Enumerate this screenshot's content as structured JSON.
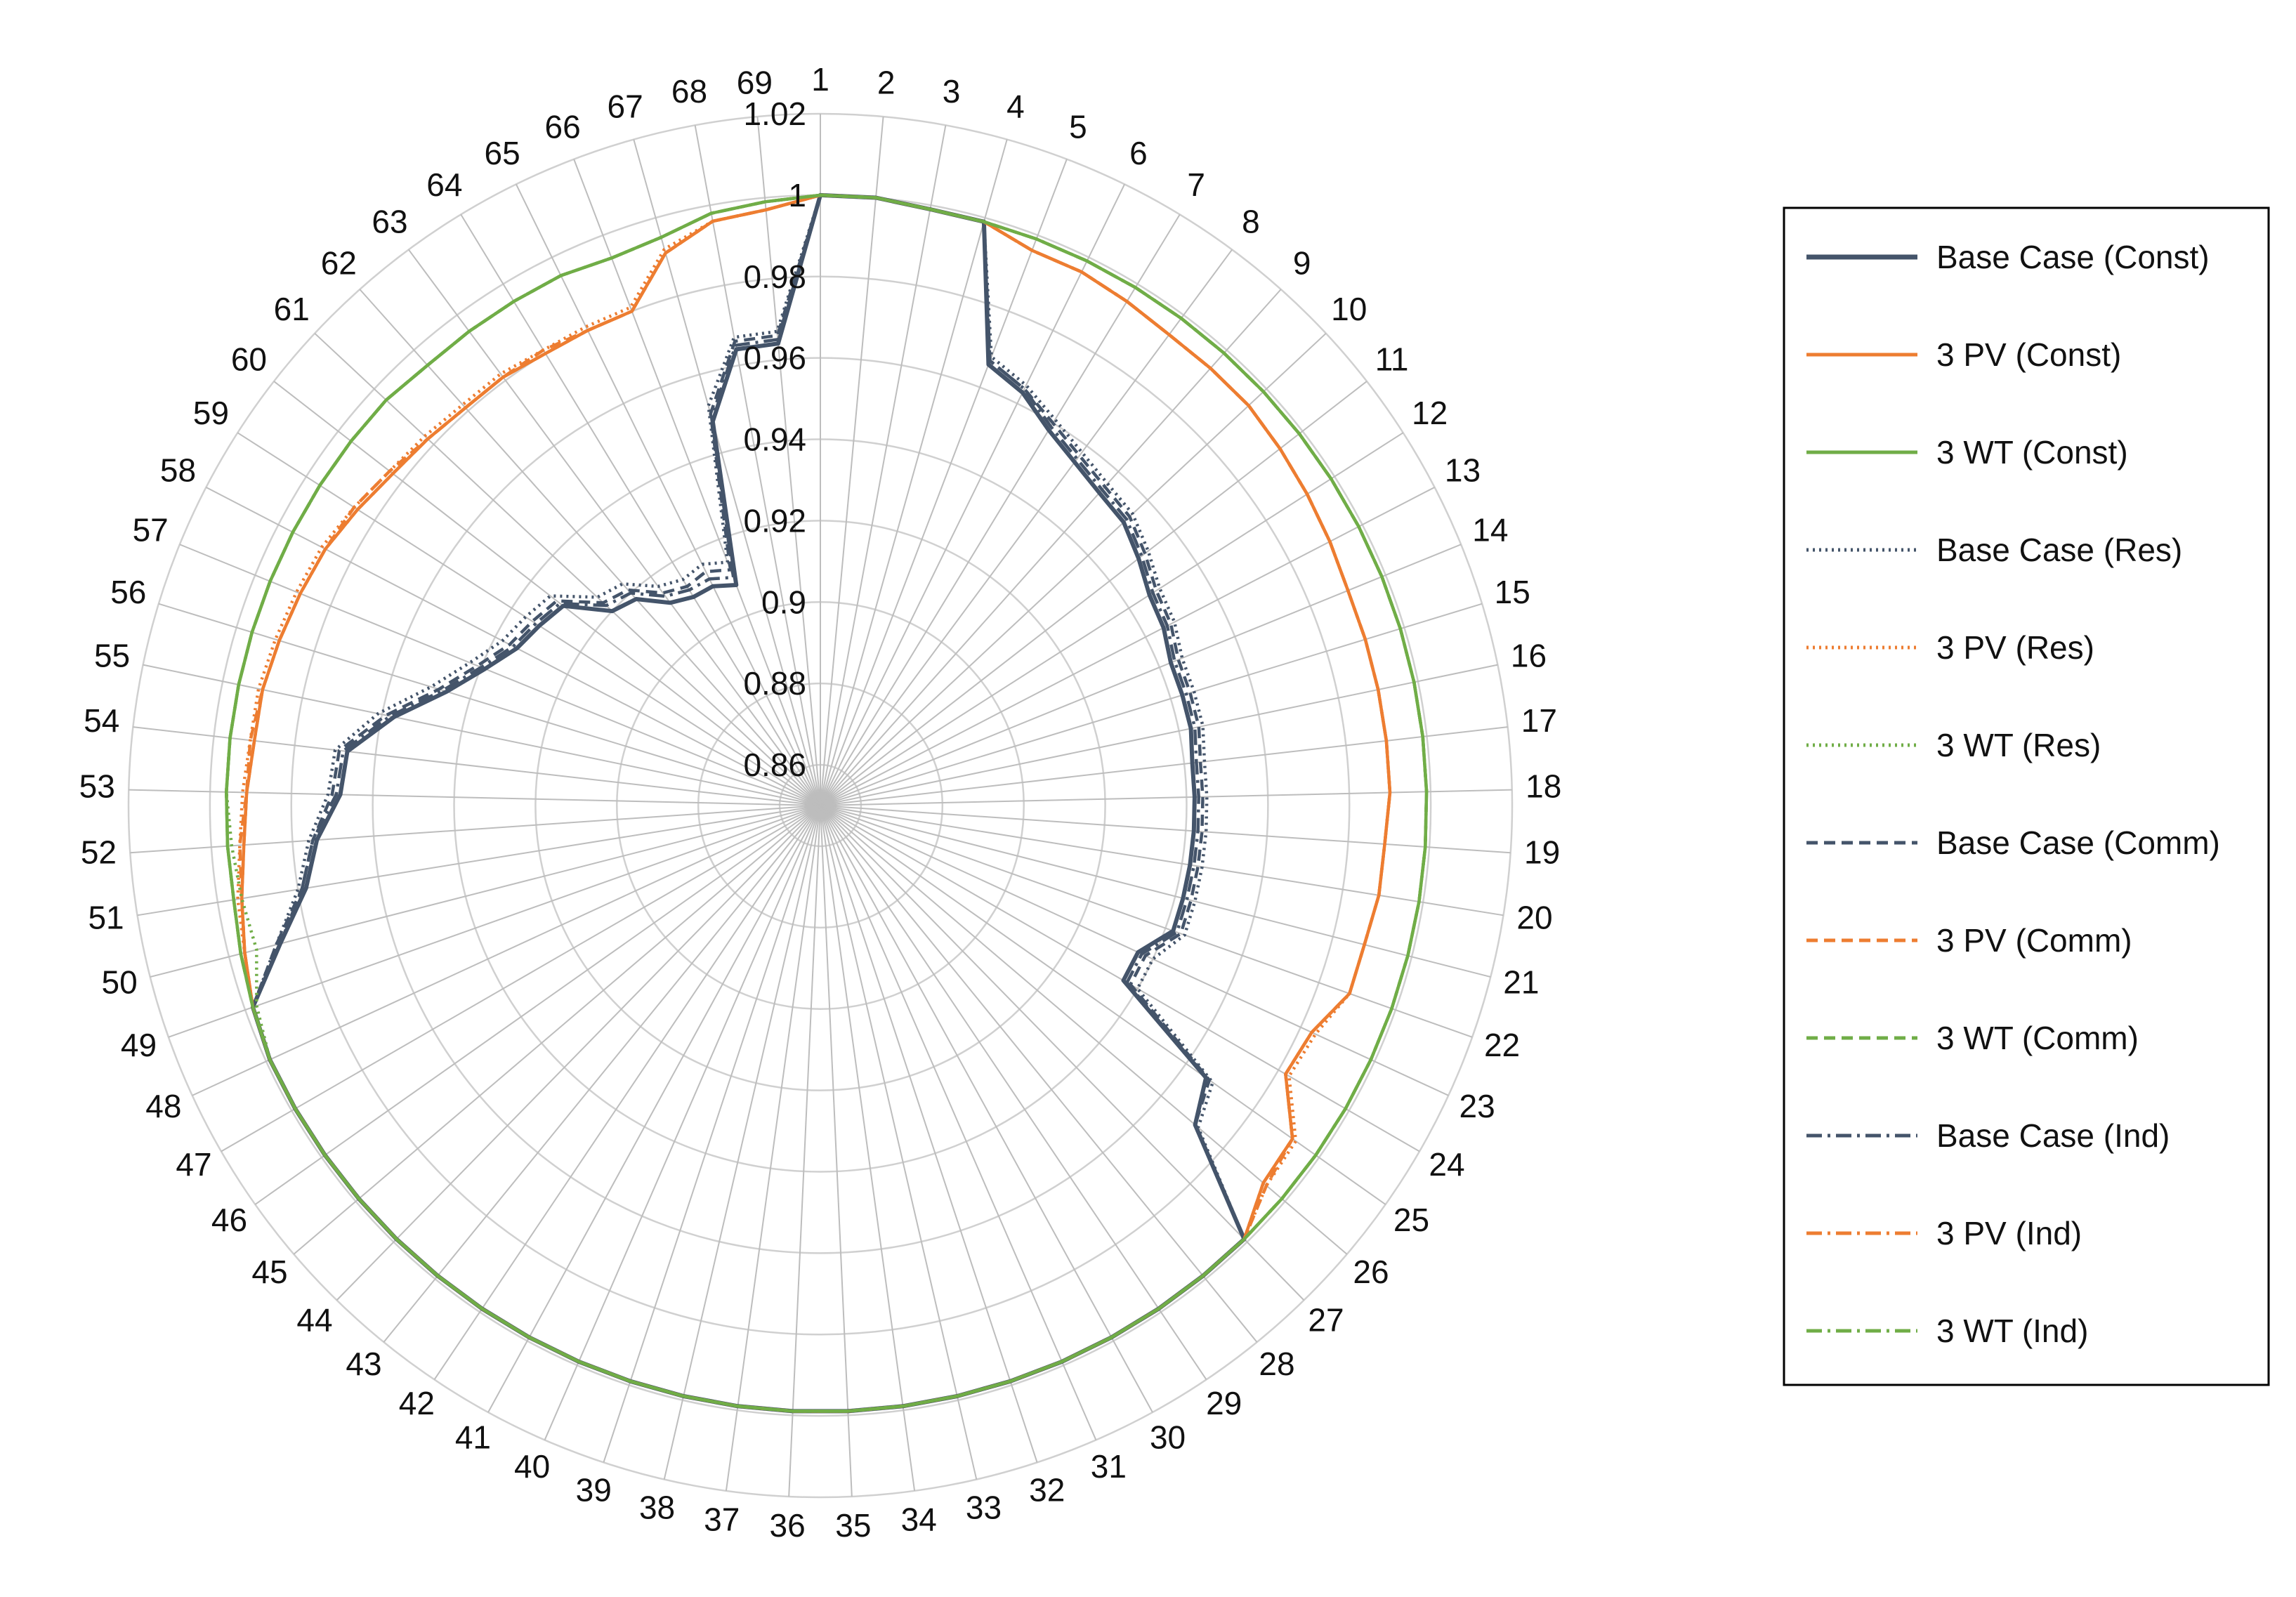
{
  "chart_data": {
    "type": "radar",
    "title": "",
    "categories": [
      "1",
      "2",
      "3",
      "4",
      "5",
      "6",
      "7",
      "8",
      "9",
      "10",
      "11",
      "12",
      "13",
      "14",
      "15",
      "16",
      "17",
      "18",
      "19",
      "20",
      "21",
      "22",
      "23",
      "24",
      "25",
      "26",
      "27",
      "28",
      "29",
      "30",
      "31",
      "32",
      "33",
      "34",
      "35",
      "36",
      "37",
      "38",
      "39",
      "40",
      "41",
      "42",
      "43",
      "44",
      "45",
      "46",
      "47",
      "48",
      "49",
      "50",
      "51",
      "52",
      "53",
      "54",
      "55",
      "56",
      "57",
      "58",
      "59",
      "60",
      "61",
      "62",
      "63",
      "64",
      "65",
      "66",
      "67",
      "68",
      "69"
    ],
    "rlim": [
      0.85,
      1.02
    ],
    "ticks": [
      {
        "value": 0.86,
        "label": "0.86"
      },
      {
        "value": 0.88,
        "label": "0.88"
      },
      {
        "value": 0.9,
        "label": "0.9"
      },
      {
        "value": 0.92,
        "label": "0.92"
      },
      {
        "value": 0.94,
        "label": "0.94"
      },
      {
        "value": 0.96,
        "label": "0.96"
      },
      {
        "value": 0.98,
        "label": "0.98"
      },
      {
        "value": 1.0,
        "label": "1"
      },
      {
        "value": 1.02,
        "label": "1.02"
      }
    ],
    "legend_position": "right",
    "series": [
      {
        "name": "Base Case (Const)",
        "color": "#44546A",
        "dash": "solid",
        "values": [
          1.0,
          1.0,
          0.999,
          0.999,
          0.966,
          0.963,
          0.958,
          0.955,
          0.953,
          0.952,
          0.949,
          0.946,
          0.945,
          0.943,
          0.943,
          0.943,
          0.942,
          0.942,
          0.942,
          0.942,
          0.942,
          0.942,
          0.936,
          0.936,
          0.966,
          0.971,
          0.999,
          0.999,
          0.999,
          0.999,
          0.999,
          0.999,
          0.999,
          0.999,
          0.999,
          0.999,
          0.999,
          0.999,
          0.999,
          0.999,
          0.999,
          0.999,
          0.999,
          0.999,
          0.999,
          0.999,
          0.999,
          0.999,
          0.998,
          0.987,
          0.978,
          0.974,
          0.968,
          0.967,
          0.957,
          0.946,
          0.939,
          0.934,
          0.932,
          0.93,
          0.92,
          0.918,
          0.912,
          0.91,
          0.91,
          0.908,
          0.948,
          0.964,
          0.964
        ]
      },
      {
        "name": "3 PV (Const)",
        "color": "#ED7D31",
        "dash": "solid",
        "values": [
          1.0,
          1.0,
          0.999,
          0.999,
          0.996,
          0.996,
          0.995,
          0.994,
          0.994,
          0.994,
          0.993,
          0.992,
          0.991,
          0.99,
          0.99,
          0.99,
          0.99,
          0.99,
          0.989,
          0.989,
          0.988,
          0.988,
          0.983,
          0.982,
          0.992,
          0.993,
          0.999,
          0.999,
          0.999,
          0.999,
          0.999,
          0.999,
          0.999,
          0.999,
          0.999,
          0.999,
          0.999,
          0.999,
          0.999,
          0.999,
          0.999,
          0.999,
          0.999,
          0.999,
          0.999,
          0.999,
          0.999,
          0.999,
          0.998,
          0.996,
          0.994,
          0.992,
          0.991,
          0.99,
          0.99,
          0.989,
          0.988,
          0.987,
          0.985,
          0.983,
          0.982,
          0.981,
          0.981,
          0.98,
          0.98,
          0.98,
          0.991,
          0.996,
          0.997
        ]
      },
      {
        "name": "3 WT (Const)",
        "color": "#70AD47",
        "dash": "solid",
        "values": [
          1.0,
          1.0,
          0.999,
          0.999,
          0.999,
          0.999,
          0.999,
          0.999,
          0.999,
          0.999,
          0.999,
          0.999,
          0.999,
          0.999,
          0.999,
          0.999,
          0.999,
          0.999,
          0.999,
          0.999,
          0.999,
          0.999,
          0.999,
          0.999,
          0.999,
          0.999,
          0.999,
          0.999,
          0.999,
          0.999,
          0.999,
          0.999,
          0.999,
          0.999,
          0.999,
          0.999,
          0.999,
          0.999,
          0.999,
          0.999,
          0.999,
          0.999,
          0.999,
          0.999,
          0.999,
          0.999,
          0.999,
          0.999,
          0.998,
          0.997,
          0.996,
          0.996,
          0.996,
          0.996,
          0.996,
          0.996,
          0.996,
          0.996,
          0.996,
          0.996,
          0.996,
          0.995,
          0.995,
          0.995,
          0.995,
          0.994,
          0.995,
          0.998,
          0.999
        ]
      },
      {
        "name": "Base Case (Res)",
        "color": "#44546A",
        "dash": "dot",
        "values": [
          1.0,
          1.0,
          0.999,
          0.999,
          0.968,
          0.965,
          0.961,
          0.958,
          0.956,
          0.955,
          0.952,
          0.949,
          0.948,
          0.946,
          0.946,
          0.946,
          0.945,
          0.945,
          0.945,
          0.945,
          0.945,
          0.945,
          0.94,
          0.94,
          0.968,
          0.972,
          0.999,
          0.999,
          0.999,
          0.999,
          0.999,
          0.999,
          0.999,
          0.999,
          0.999,
          0.999,
          0.999,
          0.999,
          0.999,
          0.999,
          0.999,
          0.999,
          0.999,
          0.999,
          0.999,
          0.999,
          0.999,
          0.999,
          0.998,
          0.988,
          0.98,
          0.976,
          0.971,
          0.97,
          0.961,
          0.95,
          0.943,
          0.938,
          0.936,
          0.934,
          0.925,
          0.923,
          0.917,
          0.915,
          0.916,
          0.914,
          0.952,
          0.967,
          0.967
        ]
      },
      {
        "name": "3 PV (Res)",
        "color": "#ED7D31",
        "dash": "dot",
        "values": [
          1.0,
          1.0,
          0.999,
          0.999,
          0.996,
          0.996,
          0.995,
          0.994,
          0.994,
          0.994,
          0.993,
          0.992,
          0.991,
          0.99,
          0.99,
          0.99,
          0.99,
          0.99,
          0.989,
          0.989,
          0.988,
          0.988,
          0.984,
          0.983,
          0.993,
          0.994,
          0.999,
          0.999,
          0.999,
          0.999,
          0.999,
          0.999,
          0.999,
          0.999,
          0.999,
          0.999,
          0.999,
          0.999,
          0.999,
          0.999,
          0.999,
          0.999,
          0.999,
          0.999,
          0.999,
          0.999,
          0.999,
          0.999,
          0.998,
          0.996,
          0.995,
          0.993,
          0.992,
          0.991,
          0.991,
          0.99,
          0.989,
          0.988,
          0.986,
          0.984,
          0.983,
          0.982,
          0.982,
          0.981,
          0.981,
          0.981,
          0.992,
          0.996,
          0.997
        ]
      },
      {
        "name": "3 WT (Res)",
        "color": "#70AD47",
        "dash": "dot",
        "values": [
          1.0,
          1.0,
          0.999,
          0.999,
          0.999,
          0.999,
          0.999,
          0.999,
          0.999,
          0.999,
          0.999,
          0.999,
          0.999,
          0.999,
          0.999,
          0.999,
          0.999,
          0.999,
          0.999,
          0.999,
          0.999,
          0.999,
          0.999,
          0.999,
          0.999,
          0.999,
          0.999,
          0.999,
          0.999,
          0.999,
          0.999,
          0.999,
          0.999,
          0.999,
          0.999,
          0.999,
          0.999,
          0.999,
          0.999,
          0.999,
          0.999,
          0.999,
          0.999,
          0.999,
          0.999,
          0.999,
          0.999,
          0.999,
          0.997,
          0.993,
          0.994,
          0.995,
          0.996,
          0.996,
          0.996,
          0.996,
          0.996,
          0.996,
          0.996,
          0.996,
          0.996,
          0.995,
          0.995,
          0.995,
          0.995,
          0.994,
          0.995,
          0.998,
          0.999
        ]
      },
      {
        "name": "Base Case (Comm)",
        "color": "#44546A",
        "dash": "dash",
        "values": [
          1.0,
          1.0,
          0.999,
          0.999,
          0.967,
          0.964,
          0.96,
          0.957,
          0.955,
          0.954,
          0.951,
          0.948,
          0.947,
          0.945,
          0.945,
          0.945,
          0.944,
          0.944,
          0.944,
          0.944,
          0.944,
          0.944,
          0.938,
          0.938,
          0.967,
          0.971,
          0.999,
          0.999,
          0.999,
          0.999,
          0.999,
          0.999,
          0.999,
          0.999,
          0.999,
          0.999,
          0.999,
          0.999,
          0.999,
          0.999,
          0.999,
          0.999,
          0.999,
          0.999,
          0.999,
          0.999,
          0.999,
          0.999,
          0.998,
          0.988,
          0.979,
          0.975,
          0.97,
          0.969,
          0.959,
          0.948,
          0.941,
          0.936,
          0.934,
          0.932,
          0.923,
          0.921,
          0.915,
          0.913,
          0.914,
          0.912,
          0.95,
          0.966,
          0.966
        ]
      },
      {
        "name": "3 PV (Comm)",
        "color": "#ED7D31",
        "dash": "dash",
        "values": [
          1.0,
          1.0,
          0.999,
          0.999,
          0.996,
          0.996,
          0.995,
          0.994,
          0.994,
          0.994,
          0.993,
          0.992,
          0.991,
          0.99,
          0.99,
          0.99,
          0.99,
          0.99,
          0.989,
          0.989,
          0.988,
          0.988,
          0.983,
          0.982,
          0.992,
          0.994,
          0.999,
          0.999,
          0.999,
          0.999,
          0.999,
          0.999,
          0.999,
          0.999,
          0.999,
          0.999,
          0.999,
          0.999,
          0.999,
          0.999,
          0.999,
          0.999,
          0.999,
          0.999,
          0.999,
          0.999,
          0.999,
          0.999,
          0.998,
          0.996,
          0.994,
          0.993,
          0.991,
          0.991,
          0.99,
          0.989,
          0.988,
          0.987,
          0.986,
          0.984,
          0.982,
          0.981,
          0.981,
          0.981,
          0.98,
          0.98,
          0.991,
          0.996,
          0.997
        ]
      },
      {
        "name": "3 WT (Comm)",
        "color": "#70AD47",
        "dash": "dash",
        "values": [
          1.0,
          1.0,
          0.999,
          0.999,
          0.999,
          0.999,
          0.999,
          0.999,
          0.999,
          0.999,
          0.999,
          0.999,
          0.999,
          0.999,
          0.999,
          0.999,
          0.999,
          0.999,
          0.999,
          0.999,
          0.999,
          0.999,
          0.999,
          0.999,
          0.999,
          0.999,
          0.999,
          0.999,
          0.999,
          0.999,
          0.999,
          0.999,
          0.999,
          0.999,
          0.999,
          0.999,
          0.999,
          0.999,
          0.999,
          0.999,
          0.999,
          0.999,
          0.999,
          0.999,
          0.999,
          0.999,
          0.999,
          0.999,
          0.998,
          0.997,
          0.996,
          0.996,
          0.996,
          0.996,
          0.996,
          0.996,
          0.996,
          0.996,
          0.996,
          0.996,
          0.996,
          0.995,
          0.995,
          0.995,
          0.995,
          0.994,
          0.995,
          0.998,
          0.999
        ]
      },
      {
        "name": "Base Case (Ind)",
        "color": "#44546A",
        "dash": "dashdot",
        "values": [
          1.0,
          1.0,
          0.999,
          0.999,
          0.967,
          0.964,
          0.959,
          0.956,
          0.954,
          0.953,
          0.95,
          0.947,
          0.946,
          0.944,
          0.944,
          0.944,
          0.943,
          0.943,
          0.943,
          0.943,
          0.943,
          0.943,
          0.937,
          0.937,
          0.966,
          0.971,
          0.999,
          0.999,
          0.999,
          0.999,
          0.999,
          0.999,
          0.999,
          0.999,
          0.999,
          0.999,
          0.999,
          0.999,
          0.999,
          0.999,
          0.999,
          0.999,
          0.999,
          0.999,
          0.999,
          0.999,
          0.999,
          0.999,
          0.998,
          0.987,
          0.979,
          0.975,
          0.969,
          0.968,
          0.958,
          0.947,
          0.94,
          0.935,
          0.933,
          0.931,
          0.922,
          0.92,
          0.914,
          0.912,
          0.912,
          0.91,
          0.949,
          0.965,
          0.965
        ]
      },
      {
        "name": "3 PV (Ind)",
        "color": "#ED7D31",
        "dash": "dashdot",
        "values": [
          1.0,
          1.0,
          0.999,
          0.999,
          0.996,
          0.996,
          0.995,
          0.994,
          0.994,
          0.994,
          0.993,
          0.992,
          0.991,
          0.99,
          0.99,
          0.99,
          0.99,
          0.99,
          0.989,
          0.989,
          0.988,
          0.988,
          0.983,
          0.982,
          0.992,
          0.993,
          0.999,
          0.999,
          0.999,
          0.999,
          0.999,
          0.999,
          0.999,
          0.999,
          0.999,
          0.999,
          0.999,
          0.999,
          0.999,
          0.999,
          0.999,
          0.999,
          0.999,
          0.999,
          0.999,
          0.999,
          0.999,
          0.999,
          0.998,
          0.996,
          0.994,
          0.992,
          0.991,
          0.99,
          0.99,
          0.989,
          0.988,
          0.987,
          0.985,
          0.983,
          0.982,
          0.981,
          0.981,
          0.98,
          0.98,
          0.98,
          0.991,
          0.996,
          0.997
        ]
      },
      {
        "name": "3 WT (Ind)",
        "color": "#70AD47",
        "dash": "dashdot",
        "values": [
          1.0,
          1.0,
          0.999,
          0.999,
          0.999,
          0.999,
          0.999,
          0.999,
          0.999,
          0.999,
          0.999,
          0.999,
          0.999,
          0.999,
          0.999,
          0.999,
          0.999,
          0.999,
          0.999,
          0.999,
          0.999,
          0.999,
          0.999,
          0.999,
          0.999,
          0.999,
          0.999,
          0.999,
          0.999,
          0.999,
          0.999,
          0.999,
          0.999,
          0.999,
          0.999,
          0.999,
          0.999,
          0.999,
          0.999,
          0.999,
          0.999,
          0.999,
          0.999,
          0.999,
          0.999,
          0.999,
          0.999,
          0.999,
          0.998,
          0.997,
          0.996,
          0.996,
          0.996,
          0.996,
          0.996,
          0.996,
          0.996,
          0.996,
          0.996,
          0.996,
          0.996,
          0.995,
          0.995,
          0.995,
          0.995,
          0.994,
          0.995,
          0.998,
          0.999
        ]
      }
    ]
  }
}
